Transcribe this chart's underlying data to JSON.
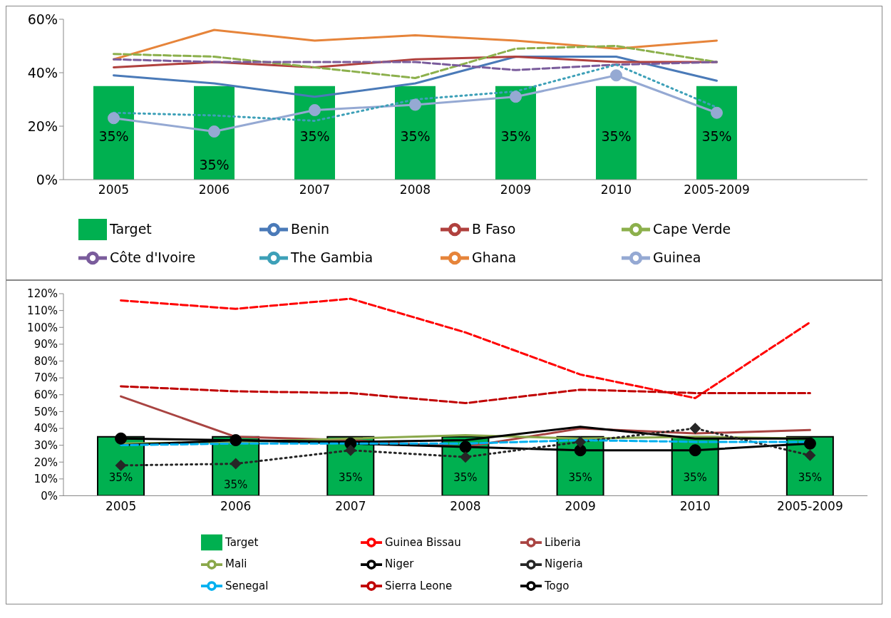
{
  "chart_data": [
    {
      "type": "line",
      "categories": [
        "2005",
        "2006",
        "2007",
        "2008",
        "2009",
        "2010",
        "2005-2009",
        null
      ],
      "ylim": [
        0,
        60
      ],
      "yticks": [
        {
          "value": 0,
          "label": "0%"
        },
        {
          "value": 20,
          "label": "20%"
        },
        {
          "value": 40,
          "label": "40%"
        },
        {
          "value": 60,
          "label": "60%"
        }
      ],
      "legend": "bottom",
      "series": [
        {
          "name": "Target",
          "type": "bar",
          "color": "#00b050",
          "values": [
            35,
            35,
            35,
            35,
            35,
            35,
            35,
            null
          ],
          "value_labels": [
            "35%",
            "35%",
            "35%",
            "35%",
            "35%",
            "35%",
            "35%",
            null
          ]
        },
        {
          "name": "Benin",
          "color": "#4a7ab8",
          "values": [
            39,
            36,
            31,
            36,
            46,
            46,
            37,
            null
          ]
        },
        {
          "name": "B Faso",
          "color": "#b0413e",
          "values": [
            42,
            44,
            42,
            45,
            46,
            44,
            44,
            null
          ]
        },
        {
          "name": "Cape Verde",
          "color": "#8cb04c",
          "line_style": "dashed",
          "values": [
            47,
            46,
            42,
            38,
            49,
            50,
            44,
            null
          ]
        },
        {
          "name": "Côte d'Ivoire",
          "color": "#7a5c9c",
          "line_style": "dashed",
          "values": [
            45,
            44,
            44,
            44,
            41,
            43,
            44,
            null
          ]
        },
        {
          "name": "The Gambia",
          "color": "#3da0b8",
          "line_style": "dotted",
          "values": [
            25,
            24,
            22,
            30,
            33,
            43,
            27,
            null
          ]
        },
        {
          "name": "Ghana",
          "color": "#e6843a",
          "values": [
            45,
            56,
            52,
            54,
            52,
            49,
            52,
            null
          ]
        },
        {
          "name": "Guinea",
          "color": "#95a9d3",
          "marker": "circle",
          "values": [
            23,
            18,
            26,
            28,
            31,
            39,
            25,
            null
          ]
        }
      ]
    },
    {
      "type": "line",
      "categories": [
        "2005",
        "2006",
        "2007",
        "2008",
        "2009",
        "2010",
        "2005-2009"
      ],
      "ylim": [
        0,
        120
      ],
      "yticks": [
        {
          "value": 0,
          "label": "0%"
        },
        {
          "value": 10,
          "label": "10%"
        },
        {
          "value": 20,
          "label": "20%"
        },
        {
          "value": 30,
          "label": "30%"
        },
        {
          "value": 40,
          "label": "40%"
        },
        {
          "value": 50,
          "label": "50%"
        },
        {
          "value": 60,
          "label": "60%"
        },
        {
          "value": 70,
          "label": "70%"
        },
        {
          "value": 80,
          "label": "80%"
        },
        {
          "value": 90,
          "label": "90%"
        },
        {
          "value": 100,
          "label": "100%"
        },
        {
          "value": 110,
          "label": "110%"
        },
        {
          "value": 120,
          "label": "120%"
        }
      ],
      "legend": "bottom",
      "series": [
        {
          "name": "Target",
          "type": "bar",
          "color": "#00b050",
          "values": [
            35,
            35,
            35,
            35,
            35,
            35,
            35
          ],
          "value_labels": [
            "35%",
            "35%",
            "35%",
            "35%",
            "35%",
            "35%",
            "35%"
          ]
        },
        {
          "name": "Guinea Bissau",
          "color": "#ff0000",
          "line_style": "dashed",
          "values": [
            116,
            111,
            117,
            97,
            72,
            58,
            103
          ]
        },
        {
          "name": "Liberia",
          "color": "#a94442",
          "values": [
            59,
            35,
            33,
            29,
            40,
            37,
            39
          ]
        },
        {
          "name": "Mali",
          "color": "#8aa84a",
          "values": [
            31,
            32,
            34,
            36,
            34,
            35,
            34
          ]
        },
        {
          "name": "Niger",
          "color": "#000000",
          "marker": "circle",
          "values": [
            34,
            33,
            31,
            29,
            27,
            27,
            31
          ]
        },
        {
          "name": "Nigeria",
          "color": "#262626",
          "marker": "diamond",
          "line_style": "dotted",
          "values": [
            18,
            19,
            27,
            23,
            32,
            40,
            24
          ]
        },
        {
          "name": "Senegal",
          "color": "#00b0f0",
          "line_style": "dashed",
          "values": [
            30,
            31,
            31,
            31,
            33,
            32,
            32
          ]
        },
        {
          "name": "Sierra Leone",
          "color": "#c00000",
          "line_style": "dashed",
          "values": [
            65,
            62,
            61,
            55,
            63,
            61,
            61
          ]
        },
        {
          "name": "Togo",
          "color": "#000000",
          "values": [
            30,
            33,
            32,
            33,
            41,
            34,
            34
          ]
        }
      ]
    }
  ]
}
